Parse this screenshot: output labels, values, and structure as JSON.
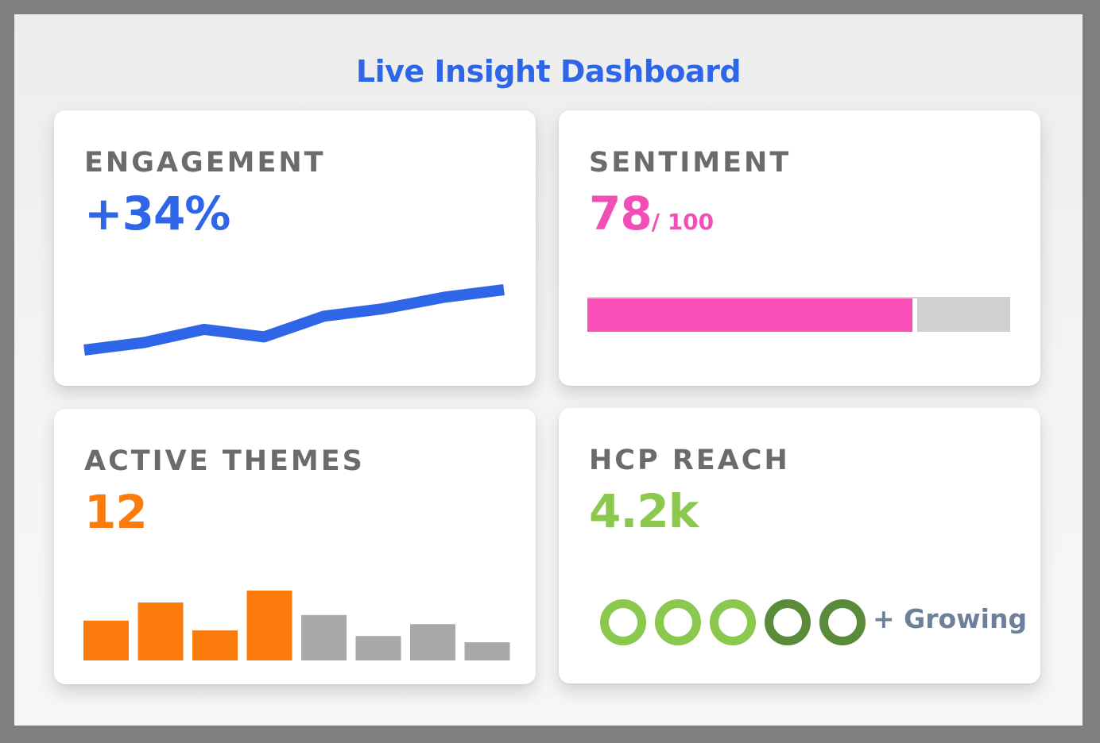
{
  "title": "Live Insight Dashboard",
  "colors": {
    "blue": "#2f66e8",
    "pink": "#f850b7",
    "orange": "#fb7c0d",
    "gray": "#aba8a8",
    "green_light": "#8bc84e",
    "green_dark": "#5a8b3a",
    "label_gray": "#6b6b6b"
  },
  "cards": {
    "engagement": {
      "label": "ENGAGEMENT",
      "value": "+34%",
      "trend": [
        0,
        8,
        22,
        14,
        36,
        44,
        56,
        64
      ]
    },
    "sentiment": {
      "label": "SENTIMENT",
      "value": "78",
      "suffix": "/ 100",
      "progress": 0.78
    },
    "themes": {
      "label": "ACTIVE THEMES",
      "value": "12",
      "bars": [
        {
          "v": 0.57,
          "highlight": true
        },
        {
          "v": 0.83,
          "highlight": true
        },
        {
          "v": 0.43,
          "highlight": true
        },
        {
          "v": 1.0,
          "highlight": true
        },
        {
          "v": 0.65,
          "highlight": false
        },
        {
          "v": 0.35,
          "highlight": false
        },
        {
          "v": 0.52,
          "highlight": false
        },
        {
          "v": 0.26,
          "highlight": false
        }
      ]
    },
    "reach": {
      "label": "HCP REACH",
      "value": "4.2k",
      "rings": [
        {
          "tone": "light"
        },
        {
          "tone": "light"
        },
        {
          "tone": "light"
        },
        {
          "tone": "dark"
        },
        {
          "tone": "dark"
        }
      ],
      "note": "+ Growing"
    }
  }
}
